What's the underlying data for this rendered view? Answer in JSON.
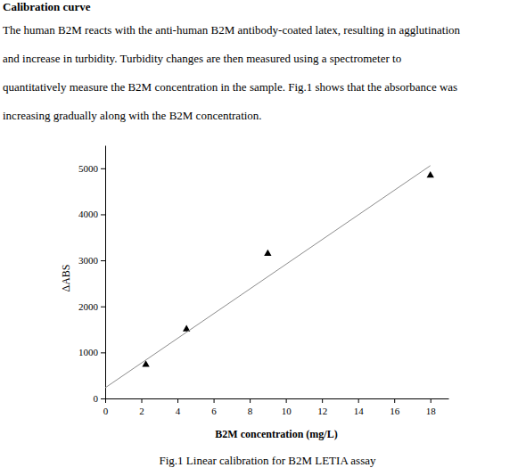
{
  "heading": "Calibration curve",
  "paragraph_lines": [
    "The human B2M reacts with the anti-human B2M antibody-coated latex, resulting in agglutination",
    "and increase in turbidity. Turbidity changes are then measured using a spectrometer to",
    "quantitatively measure the B2M concentration in the sample. Fig.1 shows that the absorbance was",
    "increasing gradually along with the B2M concentration."
  ],
  "caption": "Fig.1 Linear calibration for B2M LETIA assay",
  "chart_data": {
    "type": "scatter",
    "x_label": "B2M concentration (mg/L)",
    "y_label": "ΔABS",
    "xlim": [
      0,
      19
    ],
    "ylim": [
      0,
      5500
    ],
    "xticks": [
      0,
      2,
      4,
      6,
      8,
      10,
      12,
      14,
      16,
      18
    ],
    "yticks": [
      0,
      1000,
      2000,
      3000,
      4000,
      5000
    ],
    "grid": false,
    "series": [
      {
        "type": "scatter",
        "marker": "triangle",
        "color": "#000000",
        "x": [
          2.25,
          4.5,
          9,
          18
        ],
        "values": [
          734,
          1506,
          3147,
          4846
        ]
      },
      {
        "type": "line",
        "line_style": "solid",
        "color": "#8c8c8c",
        "x": [
          0,
          18
        ],
        "values": [
          232,
          5058
        ]
      }
    ]
  }
}
